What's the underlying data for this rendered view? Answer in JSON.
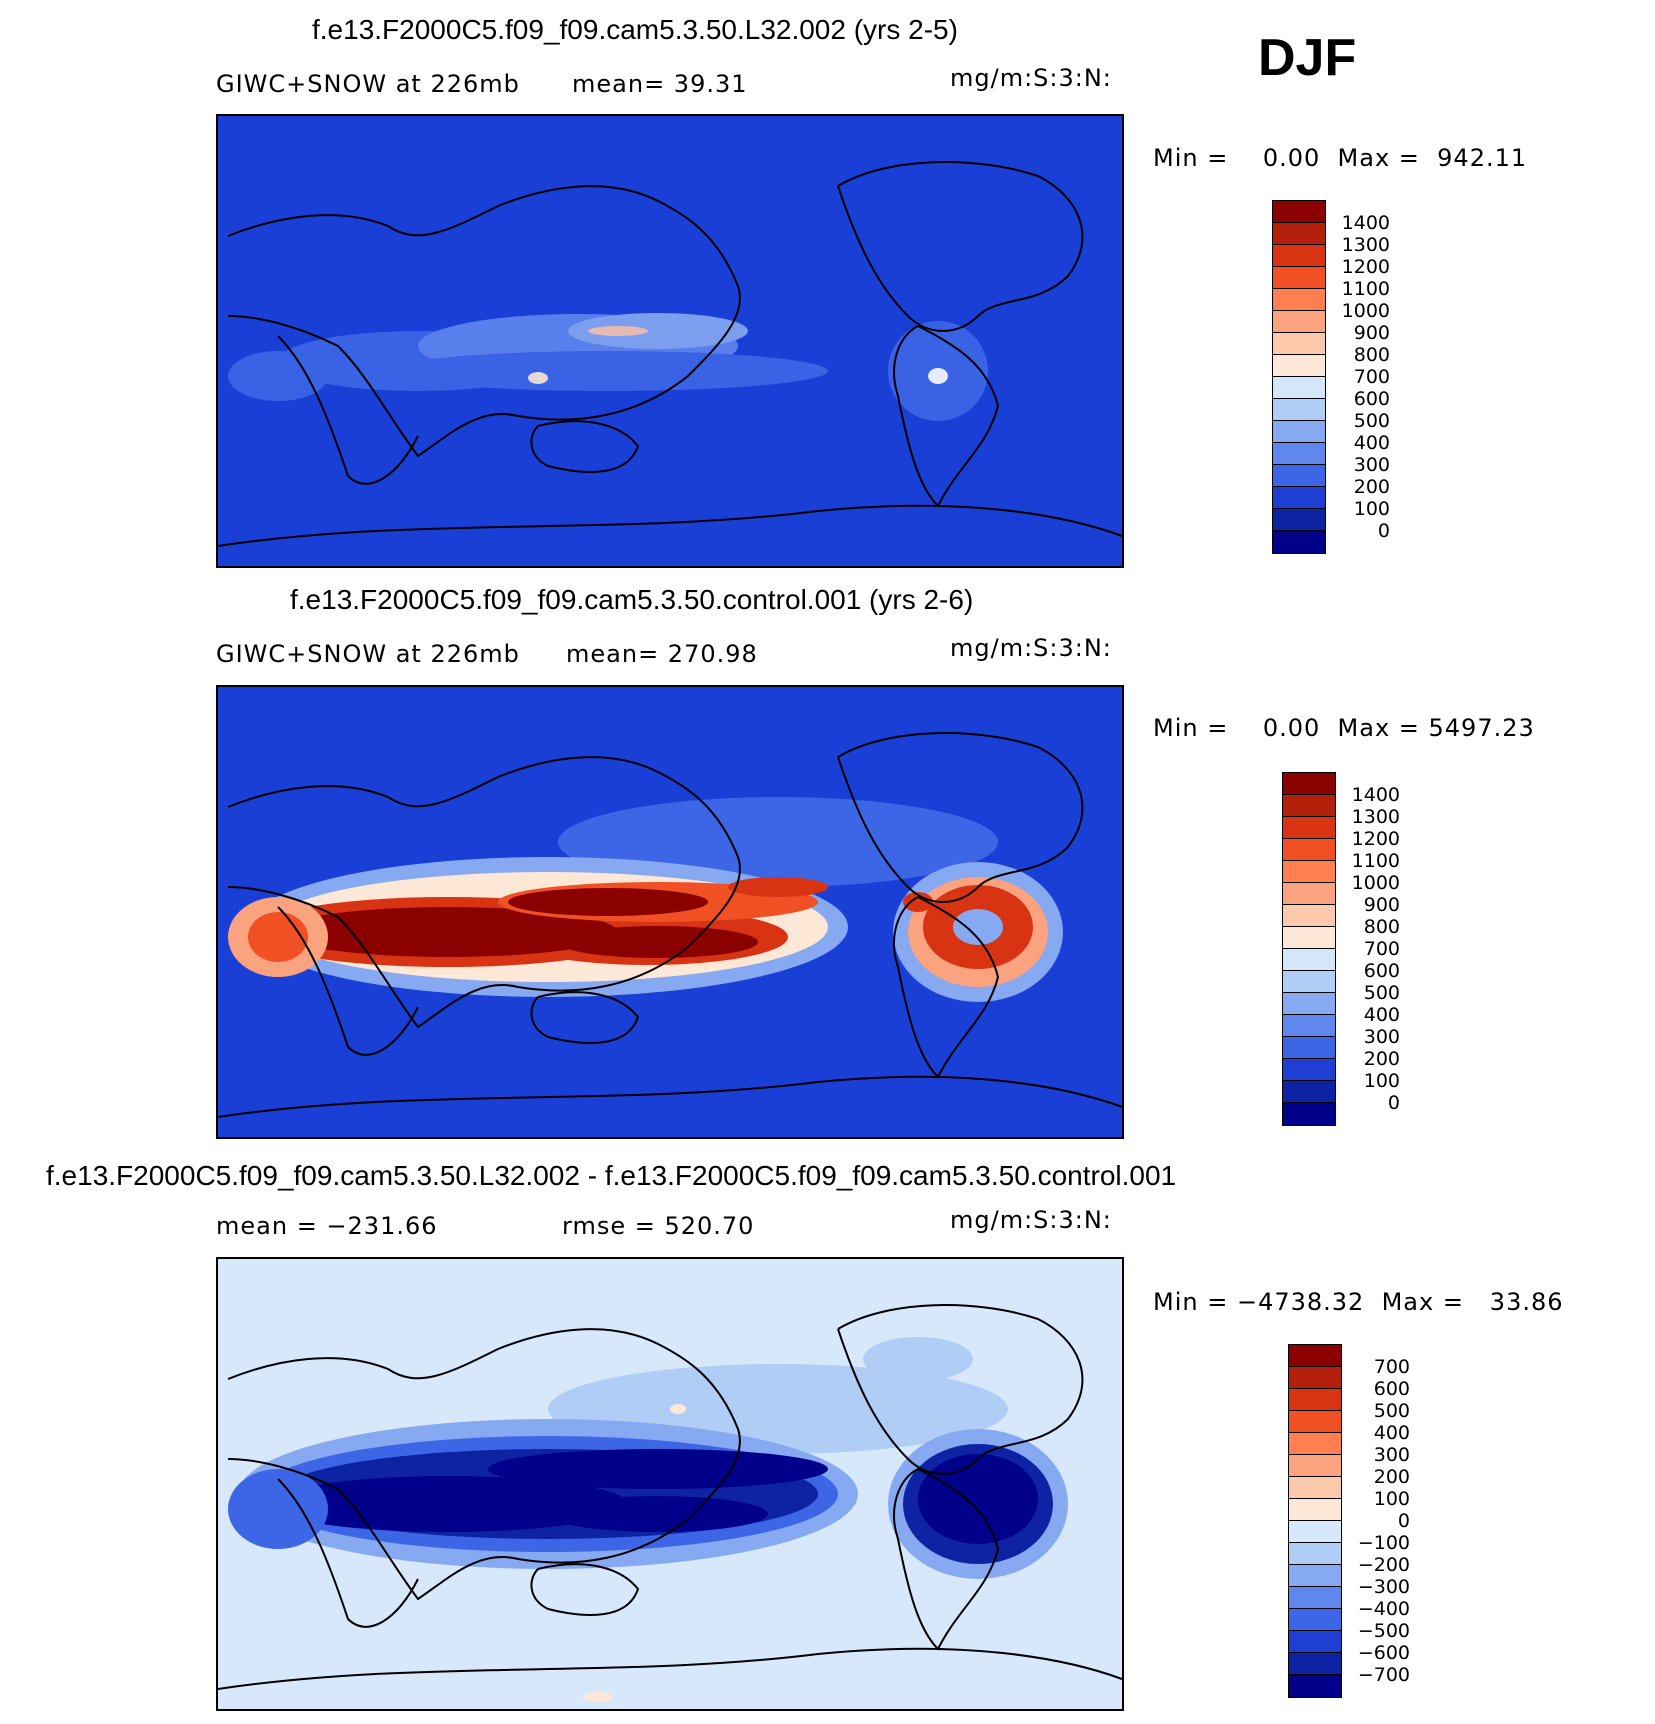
{
  "season": "DJF",
  "panels": [
    {
      "title": "f.e13.F2000C5.f09_f09.cam5.3.50.L32.002 (yrs 2-5)",
      "left_label": "GIWC+SNOW at 226mb",
      "mid_label": "mean=  39.31",
      "units": "mg/m:S:3:N:",
      "minmax": "Min =    0.00  Max =  942.11",
      "background": "#1a3fd6",
      "colorbar_ticks": [
        "1400",
        "1300",
        "1200",
        "1100",
        "1000",
        "900",
        "800",
        "700",
        "600",
        "500",
        "400",
        "300",
        "200",
        "100",
        "0"
      ]
    },
    {
      "title": "f.e13.F2000C5.f09_f09.cam5.3.50.control.001 (yrs 2-6)",
      "left_label": "GIWC+SNOW at 226mb",
      "mid_label": "mean= 270.98",
      "units": "mg/m:S:3:N:",
      "minmax": "Min =    0.00  Max = 5497.23",
      "background": "#1a3fd6",
      "colorbar_ticks": [
        "1400",
        "1300",
        "1200",
        "1100",
        "1000",
        "900",
        "800",
        "700",
        "600",
        "500",
        "400",
        "300",
        "200",
        "100",
        "0"
      ]
    },
    {
      "title": "f.e13.F2000C5.f09_f09.cam5.3.50.L32.002 - f.e13.F2000C5.f09_f09.cam5.3.50.control.001",
      "left_label": "mean = −231.66",
      "mid_label": "rmse = 520.70",
      "units": "mg/m:S:3:N:",
      "minmax": "Min = −4738.32  Max =   33.86",
      "background": "#d7e8fb",
      "colorbar_ticks": [
        "700",
        "600",
        "500",
        "400",
        "300",
        "200",
        "100",
        "0",
        "−100",
        "−200",
        "−300",
        "−400",
        "−500",
        "−600",
        "−700"
      ]
    }
  ],
  "colors": {
    "seq_scale": [
      "#8b0000",
      "#b21f0a",
      "#d83413",
      "#f05024",
      "#ff7f50",
      "#fba27e",
      "#fcc9ad",
      "#fde8d8",
      "#d3e6fa",
      "#b0cdf5",
      "#86a9f2",
      "#5f87ee",
      "#3d66e6",
      "#1f3fd3",
      "#0e22a4",
      "#00008b"
    ],
    "diff_scale": [
      "#8b0000",
      "#b21f0a",
      "#d83413",
      "#f05024",
      "#ff7f50",
      "#fba27e",
      "#fcc9ad",
      "#fde8d8",
      "#d7e8fb",
      "#b0cdf5",
      "#86a9f2",
      "#5f87ee",
      "#3d66e6",
      "#1f3fd3",
      "#0e22a4",
      "#00008b"
    ]
  },
  "icons": {
    "map_1": "global-contour-map",
    "map_2": "global-contour-map",
    "map_3": "global-contour-map"
  }
}
